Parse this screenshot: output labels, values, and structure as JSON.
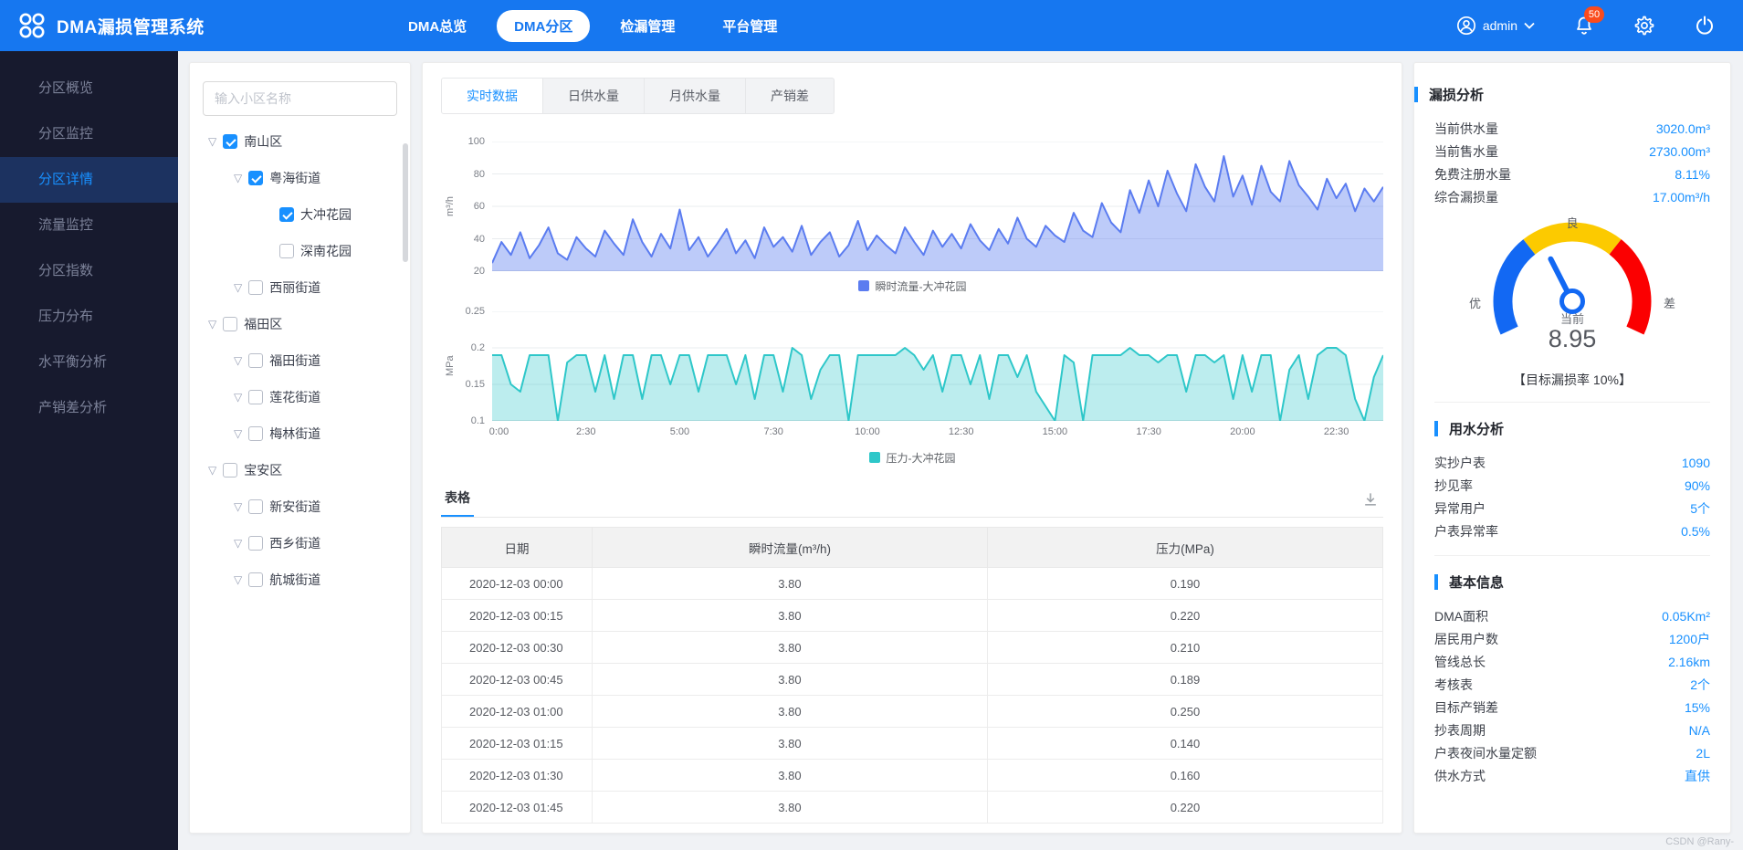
{
  "app": {
    "title": "DMA漏损管理系统"
  },
  "header": {
    "nav": [
      {
        "label": "DMA总览",
        "active": false
      },
      {
        "label": "DMA分区",
        "active": true
      },
      {
        "label": "检漏管理",
        "active": false
      },
      {
        "label": "平台管理",
        "active": false
      }
    ],
    "user": {
      "name": "admin"
    },
    "badge_count": "50"
  },
  "sidebar": {
    "active_index": 2,
    "items": [
      "分区概览",
      "分区监控",
      "分区详情",
      "流量监控",
      "分区指数",
      "压力分布",
      "水平衡分析",
      "产销差分析"
    ]
  },
  "tree": {
    "search_placeholder": "输入小区名称",
    "nodes": [
      {
        "label": "南山区",
        "level": 0,
        "checked": true,
        "caret": true
      },
      {
        "label": "粤海街道",
        "level": 1,
        "checked": true,
        "caret": true
      },
      {
        "label": "大冲花园",
        "level": 2,
        "checked": true,
        "caret": false
      },
      {
        "label": "深南花园",
        "level": 2,
        "checked": false,
        "caret": false
      },
      {
        "label": "西丽街道",
        "level": 1,
        "checked": false,
        "caret": true
      },
      {
        "label": "福田区",
        "level": 0,
        "checked": false,
        "caret": true
      },
      {
        "label": "福田街道",
        "level": 1,
        "checked": false,
        "caret": true
      },
      {
        "label": "莲花街道",
        "level": 1,
        "checked": false,
        "caret": true
      },
      {
        "label": "梅林街道",
        "level": 1,
        "checked": false,
        "caret": true
      },
      {
        "label": "宝安区",
        "level": 0,
        "checked": false,
        "caret": true
      },
      {
        "label": "新安街道",
        "level": 1,
        "checked": false,
        "caret": true
      },
      {
        "label": "西乡街道",
        "level": 1,
        "checked": false,
        "caret": true
      },
      {
        "label": "航城街道",
        "level": 1,
        "checked": false,
        "caret": true
      }
    ]
  },
  "main": {
    "tabs": [
      {
        "label": "实时数据",
        "active": true
      },
      {
        "label": "日供水量",
        "active": false
      },
      {
        "label": "月供水量",
        "active": false
      },
      {
        "label": "产销差",
        "active": false
      }
    ],
    "table_tab": "表格",
    "table": {
      "headers": [
        "日期",
        "瞬时流量(m³/h)",
        "压力(MPa)"
      ],
      "rows": [
        [
          "2020-12-03 00:00",
          "3.80",
          "0.190"
        ],
        [
          "2020-12-03 00:15",
          "3.80",
          "0.220"
        ],
        [
          "2020-12-03 00:30",
          "3.80",
          "0.210"
        ],
        [
          "2020-12-03 00:45",
          "3.80",
          "0.189"
        ],
        [
          "2020-12-03 01:00",
          "3.80",
          "0.250"
        ],
        [
          "2020-12-03 01:15",
          "3.80",
          "0.140"
        ],
        [
          "2020-12-03 01:30",
          "3.80",
          "0.160"
        ],
        [
          "2020-12-03 01:45",
          "3.80",
          "0.220"
        ]
      ]
    }
  },
  "right": {
    "sections": [
      {
        "title": "漏损分析",
        "rows": [
          [
            "当前供水量",
            "3020.0m³"
          ],
          [
            "当前售水量",
            "2730.00m³"
          ],
          [
            "免费注册水量",
            "8.11%"
          ],
          [
            "综合漏损量",
            "17.00m³/h"
          ]
        ]
      },
      {
        "title": "用水分析",
        "rows": [
          [
            "实抄户表",
            "1090"
          ],
          [
            "抄见率",
            "90%"
          ],
          [
            "异常用户",
            "5个"
          ],
          [
            "户表异常率",
            "0.5%"
          ]
        ]
      },
      {
        "title": "基本信息",
        "rows": [
          [
            "DMA面积",
            "0.05Km²"
          ],
          [
            "居民用户数",
            "1200户"
          ],
          [
            "管线总长",
            "2.16km"
          ],
          [
            "考核表",
            "2个"
          ],
          [
            "目标产销差",
            "15%"
          ],
          [
            "抄表周期",
            "N/A"
          ],
          [
            "户表夜间水量定额",
            "2L"
          ],
          [
            "供水方式",
            "直供"
          ]
        ]
      }
    ],
    "gauge": {
      "left_label": "优",
      "top_label": "良",
      "right_label": "差",
      "current_label": "当前",
      "value": "8.95",
      "target": "【目标漏损率 10%】",
      "colors": {
        "good": "#1268f3",
        "mid": "#fcca00",
        "bad": "#fb0001"
      }
    }
  },
  "watermark": "CSDN @Rany-",
  "colors": {
    "primary": "#1890ff",
    "header_bg": "#1677f0",
    "sidebar_bg": "#171a2e",
    "sidebar_active_bg": "#1c3260",
    "badge": "#fa4b1c",
    "flow_line": "#5b7cf0",
    "pressure_line": "#2ec7c9"
  },
  "chart_data": [
    {
      "type": "area",
      "name": "瞬时流量-大冲花园",
      "ylabel": "m³/h",
      "ylim": [
        20,
        100
      ],
      "yticks": [
        100,
        80,
        60,
        40,
        20
      ],
      "x_labels": [
        "0:00",
        "2:30",
        "5:00",
        "7:30",
        "10:00",
        "12:30",
        "15:00",
        "17:30",
        "20:00",
        "22:30"
      ],
      "color": "#5b7cf0",
      "fill": "rgba(91,124,240,0.40)",
      "values": [
        25,
        38,
        30,
        44,
        28,
        36,
        47,
        31,
        27,
        41,
        34,
        29,
        45,
        37,
        30,
        52,
        38,
        29,
        43,
        34,
        58,
        33,
        41,
        29,
        37,
        46,
        31,
        39,
        28,
        47,
        35,
        41,
        32,
        48,
        30,
        38,
        44,
        29,
        36,
        51,
        33,
        42,
        36,
        31,
        47,
        38,
        30,
        45,
        35,
        43,
        34,
        49,
        39,
        33,
        46,
        37,
        53,
        40,
        35,
        48,
        42,
        38,
        56,
        45,
        41,
        62,
        50,
        44,
        70,
        56,
        76,
        60,
        82,
        68,
        57,
        86,
        72,
        63,
        91,
        66,
        79,
        61,
        85,
        69,
        63,
        88,
        73,
        66,
        58,
        77,
        65,
        74,
        57,
        71,
        63,
        72
      ]
    },
    {
      "type": "area",
      "name": "压力-大冲花园",
      "ylabel": "MPa",
      "ylim": [
        0.1,
        0.25
      ],
      "yticks": [
        0.25,
        0.2,
        0.15,
        0.1
      ],
      "x_labels": [
        "0:00",
        "2:30",
        "5:00",
        "7:30",
        "10:00",
        "12:30",
        "15:00",
        "17:30",
        "20:00",
        "22:30"
      ],
      "color": "#2ec7c9",
      "fill": "rgba(46,199,201,0.32)",
      "values": [
        0.19,
        0.19,
        0.15,
        0.14,
        0.19,
        0.19,
        0.19,
        0.1,
        0.18,
        0.19,
        0.19,
        0.14,
        0.19,
        0.13,
        0.19,
        0.19,
        0.13,
        0.19,
        0.19,
        0.15,
        0.19,
        0.19,
        0.14,
        0.19,
        0.19,
        0.19,
        0.15,
        0.19,
        0.13,
        0.19,
        0.19,
        0.14,
        0.2,
        0.19,
        0.13,
        0.17,
        0.19,
        0.19,
        0.1,
        0.19,
        0.19,
        0.19,
        0.19,
        0.19,
        0.2,
        0.19,
        0.17,
        0.19,
        0.14,
        0.19,
        0.19,
        0.15,
        0.19,
        0.13,
        0.19,
        0.19,
        0.16,
        0.19,
        0.14,
        0.12,
        0.1,
        0.19,
        0.18,
        0.1,
        0.19,
        0.19,
        0.19,
        0.19,
        0.2,
        0.19,
        0.19,
        0.18,
        0.19,
        0.19,
        0.14,
        0.19,
        0.19,
        0.18,
        0.19,
        0.13,
        0.19,
        0.14,
        0.19,
        0.19,
        0.1,
        0.17,
        0.19,
        0.13,
        0.19,
        0.2,
        0.2,
        0.19,
        0.13,
        0.1,
        0.16,
        0.19
      ]
    },
    {
      "type": "gauge",
      "value": 8.95,
      "bands": [
        "优",
        "良",
        "差"
      ],
      "target_label": "【目标漏损率 10%】"
    }
  ]
}
